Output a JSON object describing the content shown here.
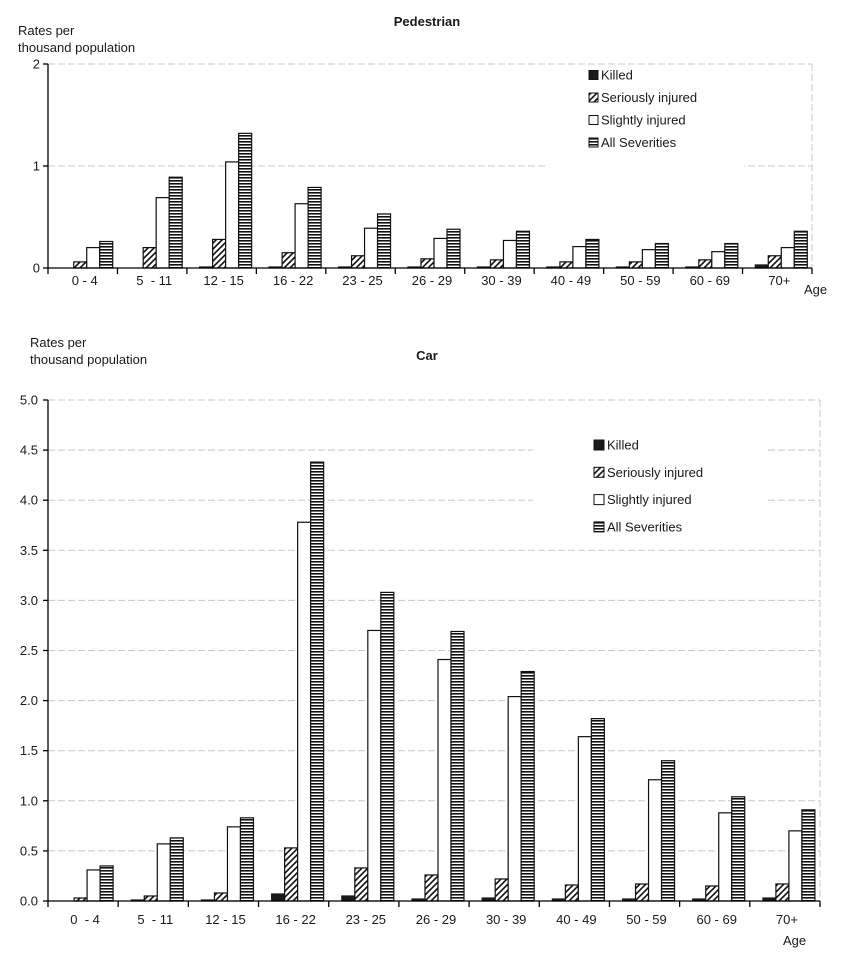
{
  "chart_data": [
    {
      "type": "bar",
      "title": "Pedestrian",
      "ylabel": "Rates per thousand population",
      "ylabel_lines": [
        "Rates per",
        "thousand population"
      ],
      "xlabel": "Age",
      "ylim": [
        0,
        2
      ],
      "yticks": [
        0,
        1,
        2
      ],
      "ytick_labels": [
        "0",
        "1",
        "2"
      ],
      "grid": true,
      "legend_position": "top-right",
      "categories": [
        "0 - 4",
        "5  - 11",
        "12 - 15",
        "16 - 22",
        "23 - 25",
        "26 - 29",
        "30 - 39",
        "40 - 49",
        "50 - 59",
        "60 - 69",
        "70+"
      ],
      "series": [
        {
          "name": "Killed",
          "pattern": "solid",
          "values": [
            0.0,
            0.0,
            0.01,
            0.01,
            0.01,
            0.01,
            0.01,
            0.01,
            0.01,
            0.01,
            0.03
          ]
        },
        {
          "name": "Seriously injured",
          "pattern": "diagonal",
          "values": [
            0.06,
            0.2,
            0.28,
            0.15,
            0.12,
            0.09,
            0.08,
            0.06,
            0.06,
            0.08,
            0.12
          ]
        },
        {
          "name": "Slightly injured",
          "pattern": "empty",
          "values": [
            0.2,
            0.69,
            1.04,
            0.63,
            0.39,
            0.29,
            0.27,
            0.21,
            0.18,
            0.16,
            0.2
          ]
        },
        {
          "name": "All Severities",
          "pattern": "horizontal",
          "values": [
            0.26,
            0.89,
            1.32,
            0.79,
            0.53,
            0.38,
            0.36,
            0.28,
            0.24,
            0.24,
            0.36
          ]
        }
      ]
    },
    {
      "type": "bar",
      "title": "Car",
      "ylabel": "Rates per thousand population",
      "ylabel_lines": [
        "Rates per",
        "thousand population"
      ],
      "xlabel": "Age",
      "ylim": [
        0,
        5
      ],
      "yticks": [
        0,
        0.5,
        1,
        1.5,
        2,
        2.5,
        3,
        3.5,
        4,
        4.5,
        5
      ],
      "ytick_labels": [
        "0.0",
        "0.5",
        "1.0",
        "1.5",
        "2.0",
        "2.5",
        "3.0",
        "3.5",
        "4.0",
        "4.5",
        "5.0"
      ],
      "grid": true,
      "legend_position": "top-right",
      "categories": [
        "0  - 4",
        "5  - 11",
        "12 - 15",
        "16 - 22",
        "23 - 25",
        "26 - 29",
        "30 - 39",
        "40 - 49",
        "50 - 59",
        "60 - 69",
        "70+"
      ],
      "series": [
        {
          "name": "Killed",
          "pattern": "solid",
          "values": [
            0.0,
            0.01,
            0.01,
            0.07,
            0.05,
            0.02,
            0.03,
            0.02,
            0.02,
            0.02,
            0.03
          ]
        },
        {
          "name": "Seriously injured",
          "pattern": "diagonal",
          "values": [
            0.03,
            0.05,
            0.08,
            0.53,
            0.33,
            0.26,
            0.22,
            0.16,
            0.17,
            0.15,
            0.17
          ]
        },
        {
          "name": "Slightly injured",
          "pattern": "empty",
          "values": [
            0.31,
            0.57,
            0.74,
            3.78,
            2.7,
            2.41,
            2.04,
            1.64,
            1.21,
            0.88,
            0.7
          ]
        },
        {
          "name": "All Severities",
          "pattern": "horizontal",
          "values": [
            0.35,
            0.63,
            0.83,
            4.38,
            3.08,
            2.69,
            2.29,
            1.82,
            1.4,
            1.04,
            0.91
          ]
        }
      ]
    }
  ]
}
